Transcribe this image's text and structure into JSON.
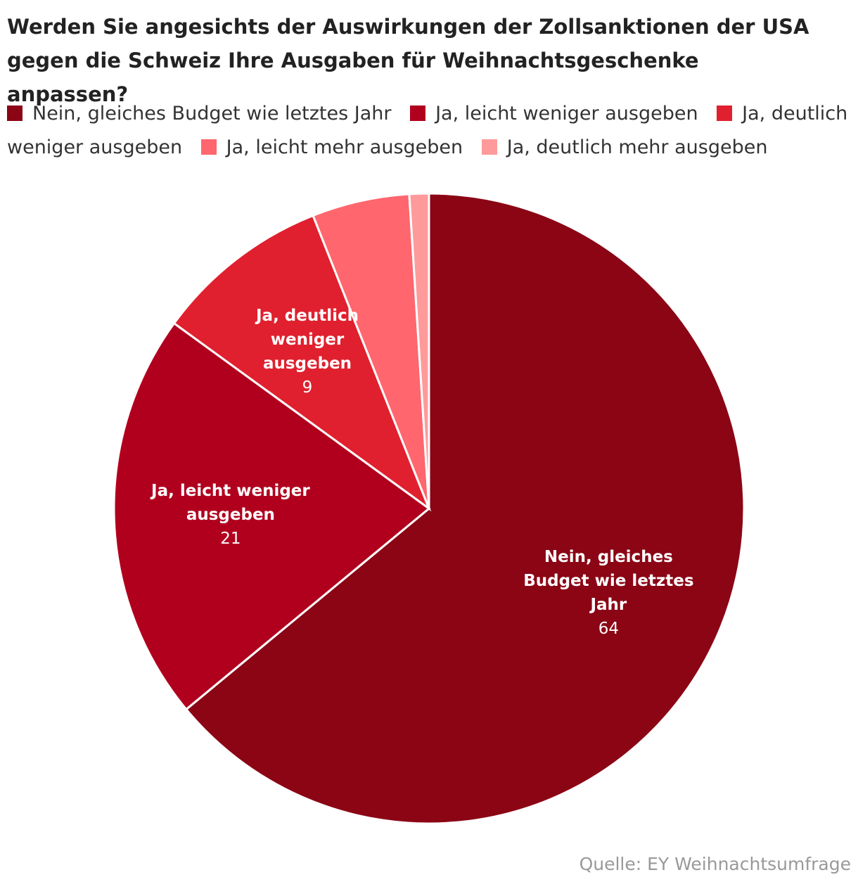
{
  "chart_data": {
    "type": "pie",
    "title": "Werden Sie angesichts der Auswirkungen der Zollsanktionen der USA gegen die Schweiz Ihre Ausgaben für Weihnachtsgeschenke anpassen?",
    "categories": [
      "Nein, gleiches Budget wie letztes Jahr",
      "Ja, leicht weniger ausgeben",
      "Ja, deutlich weniger ausgeben",
      "Ja, leicht mehr ausgeben",
      "Ja, deutlich mehr ausgeben"
    ],
    "values": [
      64,
      21,
      9,
      5,
      1
    ],
    "colors": [
      "#8b0515",
      "#b0001e",
      "#e0202e",
      "#ff666e",
      "#ff9a9a"
    ],
    "source": "Quelle: EY Weihnachtsumfrage"
  }
}
